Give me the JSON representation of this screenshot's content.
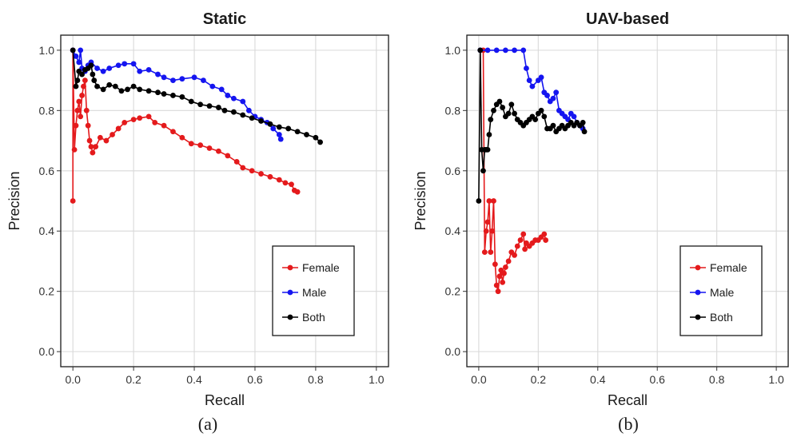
{
  "chart_data": [
    {
      "type": "line",
      "title": "Static",
      "xlabel": "Recall",
      "ylabel": "Precision",
      "caption": "(a)",
      "xlim": [
        -0.04,
        1.04
      ],
      "ylim": [
        -0.05,
        1.05
      ],
      "xticks": [
        "0.0",
        "0.2",
        "0.4",
        "0.6",
        "0.8",
        "1.0"
      ],
      "yticks": [
        "0.0",
        "0.2",
        "0.4",
        "0.6",
        "0.8",
        "1.0"
      ],
      "grid": true,
      "legend_position": "bottom-right",
      "series": [
        {
          "name": "Female",
          "color": "#e41a1c",
          "points": [
            [
              0.0,
              0.5
            ],
            [
              0.0,
              1.0
            ],
            [
              0.005,
              0.67
            ],
            [
              0.01,
              0.75
            ],
            [
              0.015,
              0.8
            ],
            [
              0.02,
              0.83
            ],
            [
              0.025,
              0.78
            ],
            [
              0.03,
              0.85
            ],
            [
              0.035,
              0.88
            ],
            [
              0.04,
              0.9
            ],
            [
              0.045,
              0.8
            ],
            [
              0.05,
              0.75
            ],
            [
              0.055,
              0.7
            ],
            [
              0.06,
              0.68
            ],
            [
              0.065,
              0.66
            ],
            [
              0.075,
              0.68
            ],
            [
              0.09,
              0.71
            ],
            [
              0.11,
              0.7
            ],
            [
              0.13,
              0.72
            ],
            [
              0.15,
              0.74
            ],
            [
              0.17,
              0.76
            ],
            [
              0.2,
              0.77
            ],
            [
              0.22,
              0.775
            ],
            [
              0.25,
              0.78
            ],
            [
              0.27,
              0.76
            ],
            [
              0.3,
              0.75
            ],
            [
              0.33,
              0.73
            ],
            [
              0.36,
              0.71
            ],
            [
              0.39,
              0.69
            ],
            [
              0.42,
              0.685
            ],
            [
              0.45,
              0.675
            ],
            [
              0.48,
              0.665
            ],
            [
              0.51,
              0.65
            ],
            [
              0.54,
              0.63
            ],
            [
              0.56,
              0.61
            ],
            [
              0.59,
              0.6
            ],
            [
              0.62,
              0.59
            ],
            [
              0.65,
              0.58
            ],
            [
              0.68,
              0.57
            ],
            [
              0.7,
              0.56
            ],
            [
              0.72,
              0.555
            ],
            [
              0.73,
              0.535
            ],
            [
              0.74,
              0.53
            ]
          ]
        },
        {
          "name": "Male",
          "color": "#1515f0",
          "points": [
            [
              0.0,
              1.0
            ],
            [
              0.01,
              0.98
            ],
            [
              0.02,
              0.96
            ],
            [
              0.025,
              1.0
            ],
            [
              0.03,
              0.94
            ],
            [
              0.04,
              0.93
            ],
            [
              0.05,
              0.95
            ],
            [
              0.06,
              0.96
            ],
            [
              0.08,
              0.94
            ],
            [
              0.1,
              0.93
            ],
            [
              0.12,
              0.94
            ],
            [
              0.15,
              0.95
            ],
            [
              0.17,
              0.955
            ],
            [
              0.2,
              0.955
            ],
            [
              0.22,
              0.93
            ],
            [
              0.25,
              0.935
            ],
            [
              0.28,
              0.92
            ],
            [
              0.3,
              0.91
            ],
            [
              0.33,
              0.9
            ],
            [
              0.36,
              0.905
            ],
            [
              0.4,
              0.91
            ],
            [
              0.43,
              0.9
            ],
            [
              0.46,
              0.88
            ],
            [
              0.49,
              0.87
            ],
            [
              0.51,
              0.85
            ],
            [
              0.53,
              0.84
            ],
            [
              0.56,
              0.83
            ],
            [
              0.58,
              0.8
            ],
            [
              0.6,
              0.78
            ],
            [
              0.62,
              0.77
            ],
            [
              0.64,
              0.76
            ],
            [
              0.66,
              0.74
            ],
            [
              0.68,
              0.72
            ],
            [
              0.685,
              0.705
            ]
          ]
        },
        {
          "name": "Both",
          "color": "#000000",
          "points": [
            [
              0.0,
              1.0
            ],
            [
              0.01,
              0.88
            ],
            [
              0.015,
              0.9
            ],
            [
              0.02,
              0.93
            ],
            [
              0.03,
              0.92
            ],
            [
              0.04,
              0.935
            ],
            [
              0.05,
              0.94
            ],
            [
              0.06,
              0.95
            ],
            [
              0.065,
              0.92
            ],
            [
              0.07,
              0.9
            ],
            [
              0.08,
              0.88
            ],
            [
              0.1,
              0.87
            ],
            [
              0.12,
              0.885
            ],
            [
              0.14,
              0.88
            ],
            [
              0.16,
              0.865
            ],
            [
              0.18,
              0.87
            ],
            [
              0.2,
              0.88
            ],
            [
              0.22,
              0.87
            ],
            [
              0.25,
              0.865
            ],
            [
              0.28,
              0.86
            ],
            [
              0.3,
              0.855
            ],
            [
              0.33,
              0.85
            ],
            [
              0.36,
              0.845
            ],
            [
              0.39,
              0.83
            ],
            [
              0.42,
              0.82
            ],
            [
              0.45,
              0.815
            ],
            [
              0.48,
              0.81
            ],
            [
              0.5,
              0.8
            ],
            [
              0.53,
              0.795
            ],
            [
              0.56,
              0.785
            ],
            [
              0.59,
              0.775
            ],
            [
              0.62,
              0.765
            ],
            [
              0.65,
              0.755
            ],
            [
              0.68,
              0.745
            ],
            [
              0.71,
              0.74
            ],
            [
              0.74,
              0.73
            ],
            [
              0.77,
              0.72
            ],
            [
              0.8,
              0.71
            ],
            [
              0.815,
              0.695
            ]
          ]
        }
      ]
    },
    {
      "type": "line",
      "title": "UAV-based",
      "xlabel": "Recall",
      "ylabel": "Precision",
      "caption": "(b)",
      "xlim": [
        -0.04,
        1.04
      ],
      "ylim": [
        -0.05,
        1.05
      ],
      "xticks": [
        "0.0",
        "0.2",
        "0.4",
        "0.6",
        "0.8",
        "1.0"
      ],
      "yticks": [
        "0.0",
        "0.2",
        "0.4",
        "0.6",
        "0.8",
        "1.0"
      ],
      "grid": true,
      "legend_position": "bottom-right",
      "series": [
        {
          "name": "Female",
          "color": "#e41a1c",
          "points": [
            [
              0.015,
              1.0
            ],
            [
              0.02,
              0.33
            ],
            [
              0.025,
              0.4
            ],
            [
              0.03,
              0.43
            ],
            [
              0.035,
              0.5
            ],
            [
              0.04,
              0.33
            ],
            [
              0.045,
              0.4
            ],
            [
              0.05,
              0.5
            ],
            [
              0.055,
              0.29
            ],
            [
              0.06,
              0.22
            ],
            [
              0.065,
              0.2
            ],
            [
              0.07,
              0.25
            ],
            [
              0.075,
              0.27
            ],
            [
              0.08,
              0.23
            ],
            [
              0.085,
              0.26
            ],
            [
              0.09,
              0.28
            ],
            [
              0.1,
              0.3
            ],
            [
              0.11,
              0.33
            ],
            [
              0.12,
              0.32
            ],
            [
              0.13,
              0.35
            ],
            [
              0.14,
              0.37
            ],
            [
              0.15,
              0.39
            ],
            [
              0.155,
              0.34
            ],
            [
              0.16,
              0.36
            ],
            [
              0.17,
              0.35
            ],
            [
              0.18,
              0.36
            ],
            [
              0.19,
              0.37
            ],
            [
              0.2,
              0.37
            ],
            [
              0.21,
              0.38
            ],
            [
              0.22,
              0.39
            ],
            [
              0.225,
              0.37
            ]
          ]
        },
        {
          "name": "Male",
          "color": "#1515f0",
          "points": [
            [
              0.005,
              1.0
            ],
            [
              0.03,
              1.0
            ],
            [
              0.06,
              1.0
            ],
            [
              0.09,
              1.0
            ],
            [
              0.12,
              1.0
            ],
            [
              0.15,
              1.0
            ],
            [
              0.16,
              0.94
            ],
            [
              0.17,
              0.9
            ],
            [
              0.18,
              0.88
            ],
            [
              0.2,
              0.9
            ],
            [
              0.21,
              0.91
            ],
            [
              0.22,
              0.86
            ],
            [
              0.23,
              0.85
            ],
            [
              0.24,
              0.83
            ],
            [
              0.25,
              0.84
            ],
            [
              0.26,
              0.86
            ],
            [
              0.27,
              0.8
            ],
            [
              0.28,
              0.79
            ],
            [
              0.29,
              0.78
            ],
            [
              0.3,
              0.77
            ],
            [
              0.31,
              0.79
            ],
            [
              0.32,
              0.78
            ],
            [
              0.33,
              0.76
            ],
            [
              0.34,
              0.75
            ],
            [
              0.35,
              0.74
            ]
          ]
        },
        {
          "name": "Both",
          "color": "#000000",
          "points": [
            [
              0.0,
              0.5
            ],
            [
              0.005,
              1.0
            ],
            [
              0.01,
              0.67
            ],
            [
              0.015,
              0.6
            ],
            [
              0.02,
              0.67
            ],
            [
              0.025,
              0.67
            ],
            [
              0.03,
              0.67
            ],
            [
              0.035,
              0.72
            ],
            [
              0.04,
              0.77
            ],
            [
              0.05,
              0.8
            ],
            [
              0.06,
              0.82
            ],
            [
              0.07,
              0.83
            ],
            [
              0.08,
              0.81
            ],
            [
              0.09,
              0.78
            ],
            [
              0.1,
              0.79
            ],
            [
              0.11,
              0.82
            ],
            [
              0.12,
              0.79
            ],
            [
              0.13,
              0.77
            ],
            [
              0.14,
              0.76
            ],
            [
              0.15,
              0.75
            ],
            [
              0.16,
              0.76
            ],
            [
              0.17,
              0.77
            ],
            [
              0.18,
              0.78
            ],
            [
              0.19,
              0.77
            ],
            [
              0.2,
              0.79
            ],
            [
              0.21,
              0.8
            ],
            [
              0.22,
              0.78
            ],
            [
              0.23,
              0.74
            ],
            [
              0.24,
              0.74
            ],
            [
              0.25,
              0.75
            ],
            [
              0.26,
              0.73
            ],
            [
              0.27,
              0.74
            ],
            [
              0.28,
              0.75
            ],
            [
              0.29,
              0.74
            ],
            [
              0.3,
              0.75
            ],
            [
              0.31,
              0.76
            ],
            [
              0.32,
              0.75
            ],
            [
              0.33,
              0.76
            ],
            [
              0.34,
              0.75
            ],
            [
              0.35,
              0.76
            ],
            [
              0.355,
              0.73
            ]
          ]
        }
      ]
    }
  ]
}
